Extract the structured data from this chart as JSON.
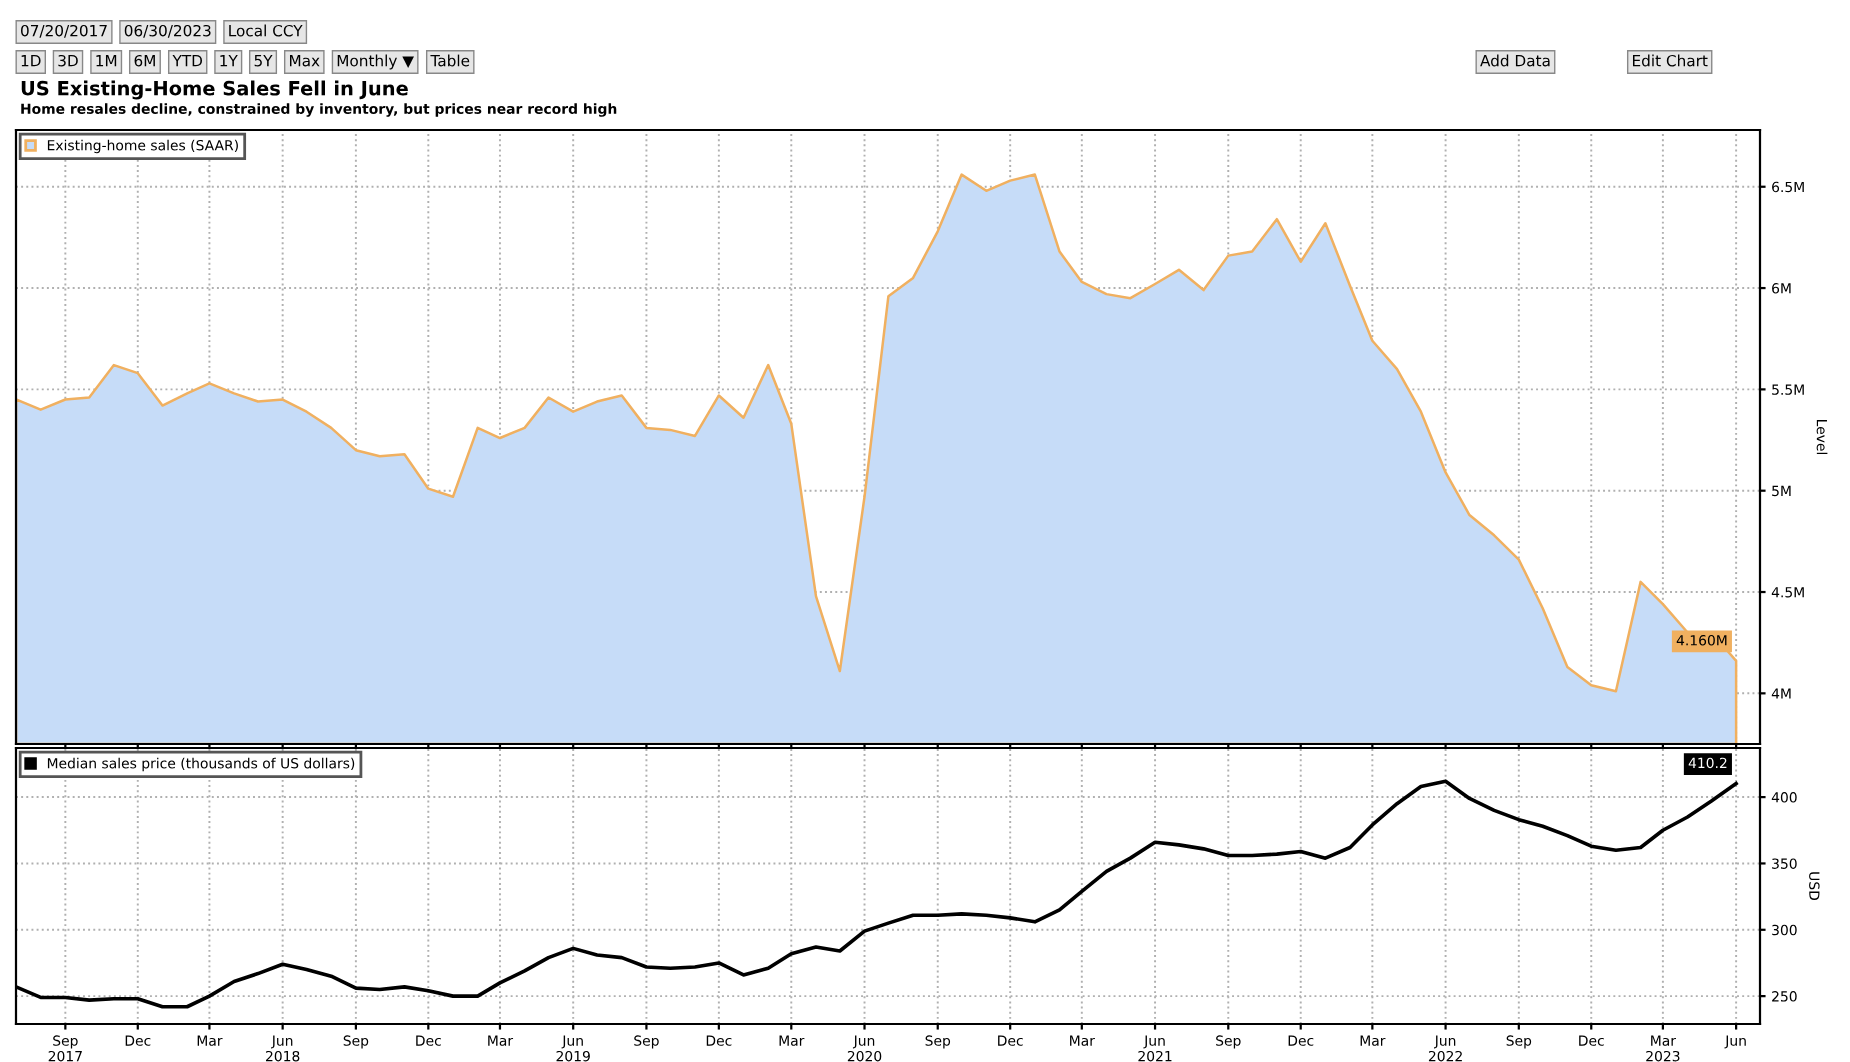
{
  "chart_data": [
    {
      "type": "area",
      "title": "US Existing-Home Sales Fell in June",
      "subtitle": "Home resales decline, constrained by inventory, but prices near record high",
      "annotations": [
        "07/20/2017",
        "06/30/2023",
        "Local CCY",
        "1D",
        "3D",
        "1M",
        "6M",
        "YTD",
        "1Y",
        "5Y",
        "Max",
        "Monthly ▼",
        "Table",
        "Add Data",
        "Edit Chart"
      ],
      "ylabel": "Level",
      "x": [
        "2017-07",
        "2017-08",
        "2017-09",
        "2017-10",
        "2017-11",
        "2017-12",
        "2018-01",
        "2018-02",
        "2018-03",
        "2018-04",
        "2018-05",
        "2018-06",
        "2018-07",
        "2018-08",
        "2018-09",
        "2018-10",
        "2018-11",
        "2018-12",
        "2019-01",
        "2019-02",
        "2019-03",
        "2019-04",
        "2019-05",
        "2019-06",
        "2019-07",
        "2019-08",
        "2019-09",
        "2019-10",
        "2019-11",
        "2019-12",
        "2020-01",
        "2020-02",
        "2020-03",
        "2020-04",
        "2020-05",
        "2020-06",
        "2020-07",
        "2020-08",
        "2020-09",
        "2020-10",
        "2020-11",
        "2020-12",
        "2021-01",
        "2021-02",
        "2021-03",
        "2021-04",
        "2021-05",
        "2021-06",
        "2021-07",
        "2021-08",
        "2021-09",
        "2021-10",
        "2021-11",
        "2021-12",
        "2022-01",
        "2022-02",
        "2022-03",
        "2022-04",
        "2022-05",
        "2022-06",
        "2022-07",
        "2022-08",
        "2022-09",
        "2022-10",
        "2022-11",
        "2022-12",
        "2023-01",
        "2023-02",
        "2023-03",
        "2023-04",
        "2023-05",
        "2023-06"
      ],
      "series": [
        {
          "name": "Existing-home sales (SAAR)",
          "color": "#c6dcf8",
          "values": [
            5.45,
            5.4,
            5.45,
            5.46,
            5.62,
            5.58,
            5.42,
            5.48,
            5.53,
            5.48,
            5.44,
            5.45,
            5.39,
            5.31,
            5.2,
            5.17,
            5.18,
            5.01,
            4.97,
            5.31,
            5.26,
            5.31,
            5.46,
            5.39,
            5.44,
            5.47,
            5.31,
            5.3,
            5.27,
            5.47,
            5.36,
            5.62,
            5.33,
            4.48,
            4.11,
            4.97,
            5.96,
            6.05,
            6.28,
            6.56,
            6.48,
            6.53,
            6.56,
            6.18,
            6.03,
            5.97,
            5.95,
            6.02,
            6.09,
            5.99,
            6.16,
            6.18,
            6.34,
            6.13,
            6.32,
            6.01,
            5.74,
            5.6,
            5.39,
            5.09,
            4.88,
            4.78,
            4.66,
            4.42,
            4.13,
            4.04,
            4.01,
            4.55,
            4.44,
            4.3,
            4.3,
            4.16
          ],
          "value_labels": [
            null,
            null,
            null,
            null,
            null,
            null,
            null,
            null,
            null,
            null,
            null,
            null,
            null,
            null,
            null,
            null,
            null,
            null,
            null,
            null,
            null,
            null,
            null,
            null,
            null,
            null,
            null,
            null,
            null,
            null,
            null,
            null,
            null,
            null,
            null,
            null,
            null,
            null,
            null,
            null,
            null,
            null,
            null,
            null,
            null,
            null,
            null,
            null,
            null,
            null,
            null,
            null,
            null,
            null,
            null,
            null,
            null,
            null,
            null,
            null,
            null,
            null,
            null,
            null,
            null,
            null,
            null,
            null,
            null,
            null,
            null,
            "4.160M"
          ]
        }
      ],
      "xlim": [
        "2017-07",
        "2023-07"
      ],
      "xticks": [
        "2017-09",
        "2017-12",
        "2018-03",
        "2018-06",
        "2018-09",
        "2018-12",
        "2019-03",
        "2019-06",
        "2019-09",
        "2019-12",
        "2020-03",
        "2020-06",
        "2020-09",
        "2020-12",
        "2021-03",
        "2021-06",
        "2021-09",
        "2021-12",
        "2022-03",
        "2022-06",
        "2022-09",
        "2022-12",
        "2023-03",
        "2023-06"
      ],
      "ylim": [
        3.75,
        6.78
      ],
      "yticks": [
        {
          "value": 4,
          "label": "4M"
        },
        {
          "value": 4.5,
          "label": "4.5M"
        },
        {
          "value": 5,
          "label": "5M"
        },
        {
          "value": 5.5,
          "label": "5.5M"
        },
        {
          "value": 6,
          "label": "6M"
        },
        {
          "value": 6.5,
          "label": "6.5M"
        }
      ],
      "tick_labels": "y",
      "grid": true,
      "legend": "top left"
    },
    {
      "type": "line",
      "ylabel": "USD",
      "x": [
        "2017-07",
        "2017-08",
        "2017-09",
        "2017-10",
        "2017-11",
        "2017-12",
        "2018-01",
        "2018-02",
        "2018-03",
        "2018-04",
        "2018-05",
        "2018-06",
        "2018-07",
        "2018-08",
        "2018-09",
        "2018-10",
        "2018-11",
        "2018-12",
        "2019-01",
        "2019-02",
        "2019-03",
        "2019-04",
        "2019-05",
        "2019-06",
        "2019-07",
        "2019-08",
        "2019-09",
        "2019-10",
        "2019-11",
        "2019-12",
        "2020-01",
        "2020-02",
        "2020-03",
        "2020-04",
        "2020-05",
        "2020-06",
        "2020-07",
        "2020-08",
        "2020-09",
        "2020-10",
        "2020-11",
        "2020-12",
        "2021-01",
        "2021-02",
        "2021-03",
        "2021-04",
        "2021-05",
        "2021-06",
        "2021-07",
        "2021-08",
        "2021-09",
        "2021-10",
        "2021-11",
        "2021-12",
        "2022-01",
        "2022-02",
        "2022-03",
        "2022-04",
        "2022-05",
        "2022-06",
        "2022-07",
        "2022-08",
        "2022-09",
        "2022-10",
        "2022-11",
        "2022-12",
        "2023-01",
        "2023-02",
        "2023-03",
        "2023-04",
        "2023-05",
        "2023-06"
      ],
      "series": [
        {
          "name": "Median sales price (thousands of US dollars)",
          "color": "#000000",
          "values": [
            257,
            249,
            249,
            247,
            248,
            248,
            242,
            242,
            250,
            261,
            267,
            274,
            270,
            265,
            256,
            255,
            257,
            254,
            250,
            250,
            260,
            269,
            279,
            286,
            281,
            279,
            272,
            271,
            272,
            275,
            266,
            271,
            282,
            287,
            284,
            299,
            305,
            311,
            311,
            312,
            311,
            309,
            306,
            315,
            329,
            344,
            354,
            366,
            364,
            361,
            356,
            356,
            357,
            359,
            354,
            362,
            379,
            395,
            408,
            412,
            399,
            390,
            383,
            378,
            371,
            363,
            360,
            362,
            375,
            385,
            397,
            410.2
          ],
          "value_labels": [
            null,
            null,
            null,
            null,
            null,
            null,
            null,
            null,
            null,
            null,
            null,
            null,
            null,
            null,
            null,
            null,
            null,
            null,
            null,
            null,
            null,
            null,
            null,
            null,
            null,
            null,
            null,
            null,
            null,
            null,
            null,
            null,
            null,
            null,
            null,
            null,
            null,
            null,
            null,
            null,
            null,
            null,
            null,
            null,
            null,
            null,
            null,
            null,
            null,
            null,
            null,
            null,
            null,
            null,
            null,
            null,
            null,
            null,
            null,
            null,
            null,
            null,
            null,
            null,
            null,
            null,
            null,
            null,
            null,
            null,
            null,
            "410.2"
          ]
        }
      ],
      "xlim": [
        "2017-07",
        "2023-07"
      ],
      "xticks": [
        {
          "value": "2017-09",
          "label": "Sep\n2017"
        },
        {
          "value": "2017-12",
          "label": "Dec"
        },
        {
          "value": "2018-03",
          "label": "Mar"
        },
        {
          "value": "2018-06",
          "label": "Jun\n2018"
        },
        {
          "value": "2018-09",
          "label": "Sep"
        },
        {
          "value": "2018-12",
          "label": "Dec"
        },
        {
          "value": "2019-03",
          "label": "Mar"
        },
        {
          "value": "2019-06",
          "label": "Jun\n2019"
        },
        {
          "value": "2019-09",
          "label": "Sep"
        },
        {
          "value": "2019-12",
          "label": "Dec"
        },
        {
          "value": "2020-03",
          "label": "Mar"
        },
        {
          "value": "2020-06",
          "label": "Jun\n2020"
        },
        {
          "value": "2020-09",
          "label": "Sep"
        },
        {
          "value": "2020-12",
          "label": "Dec"
        },
        {
          "value": "2021-03",
          "label": "Mar"
        },
        {
          "value": "2021-06",
          "label": "Jun\n2021"
        },
        {
          "value": "2021-09",
          "label": "Sep"
        },
        {
          "value": "2021-12",
          "label": "Dec"
        },
        {
          "value": "2022-03",
          "label": "Mar"
        },
        {
          "value": "2022-06",
          "label": "Jun\n2022"
        },
        {
          "value": "2022-09",
          "label": "Sep"
        },
        {
          "value": "2022-12",
          "label": "Dec"
        },
        {
          "value": "2023-03",
          "label": "Mar\n2023"
        },
        {
          "value": "2023-06",
          "label": "Jun"
        }
      ],
      "ylim": [
        229,
        437
      ],
      "yticks": [
        250,
        300,
        350,
        400
      ],
      "grid": true,
      "legend": "top left",
      "line_style": "solid",
      "marker": "none"
    }
  ]
}
